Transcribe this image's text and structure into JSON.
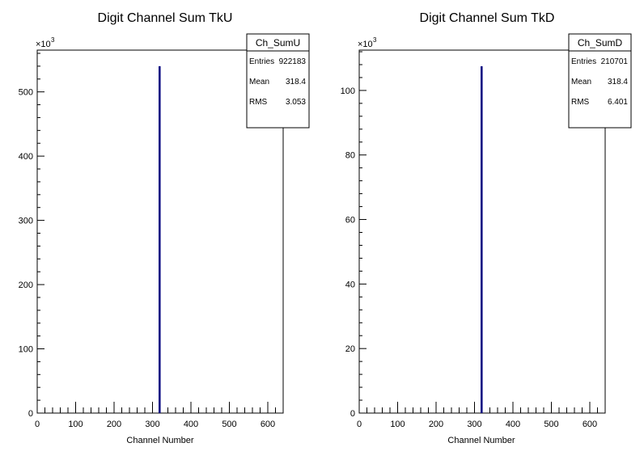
{
  "chart_data": [
    {
      "type": "bar",
      "title": "Digit Channel Sum TkU",
      "xlabel": "Channel Number",
      "ylabel": "",
      "xlim": [
        0,
        640
      ],
      "ylim": [
        0,
        565
      ],
      "y_multiplier": "×10",
      "y_multiplier_exp": "3",
      "x_ticks": [
        0,
        100,
        200,
        300,
        400,
        500,
        600
      ],
      "x_tick_labels": [
        "0",
        "100",
        "200",
        "300",
        "400",
        "500",
        "600"
      ],
      "y_ticks": [
        0,
        100,
        200,
        300,
        400,
        500
      ],
      "y_tick_labels": [
        "0",
        "100",
        "200",
        "300",
        "400",
        "500"
      ],
      "series": [
        {
          "name": "Ch_SumU",
          "x": [
            318
          ],
          "values": [
            540
          ],
          "color": "#000080"
        }
      ],
      "stats": {
        "name": "Ch_SumU",
        "rows": [
          {
            "label": "Entries",
            "value": "922183"
          },
          {
            "label": "Mean",
            "value": "318.4"
          },
          {
            "label": "RMS",
            "value": "3.053"
          }
        ]
      }
    },
    {
      "type": "bar",
      "title": "Digit Channel Sum TkD",
      "xlabel": "Channel Number",
      "ylabel": "",
      "xlim": [
        0,
        640
      ],
      "ylim": [
        0,
        112.5
      ],
      "y_multiplier": "×10",
      "y_multiplier_exp": "3",
      "x_ticks": [
        0,
        100,
        200,
        300,
        400,
        500,
        600
      ],
      "x_tick_labels": [
        "0",
        "100",
        "200",
        "300",
        "400",
        "500",
        "600"
      ],
      "y_ticks": [
        0,
        20,
        40,
        60,
        80,
        100
      ],
      "y_tick_labels": [
        "0",
        "20",
        "40",
        "60",
        "80",
        "100"
      ],
      "series": [
        {
          "name": "Ch_SumD",
          "x": [
            318
          ],
          "values": [
            107.5
          ],
          "color": "#000080"
        }
      ],
      "stats": {
        "name": "Ch_SumD",
        "rows": [
          {
            "label": "Entries",
            "value": "210701"
          },
          {
            "label": "Mean",
            "value": "318.4"
          },
          {
            "label": "RMS",
            "value": "6.401"
          }
        ]
      }
    }
  ]
}
